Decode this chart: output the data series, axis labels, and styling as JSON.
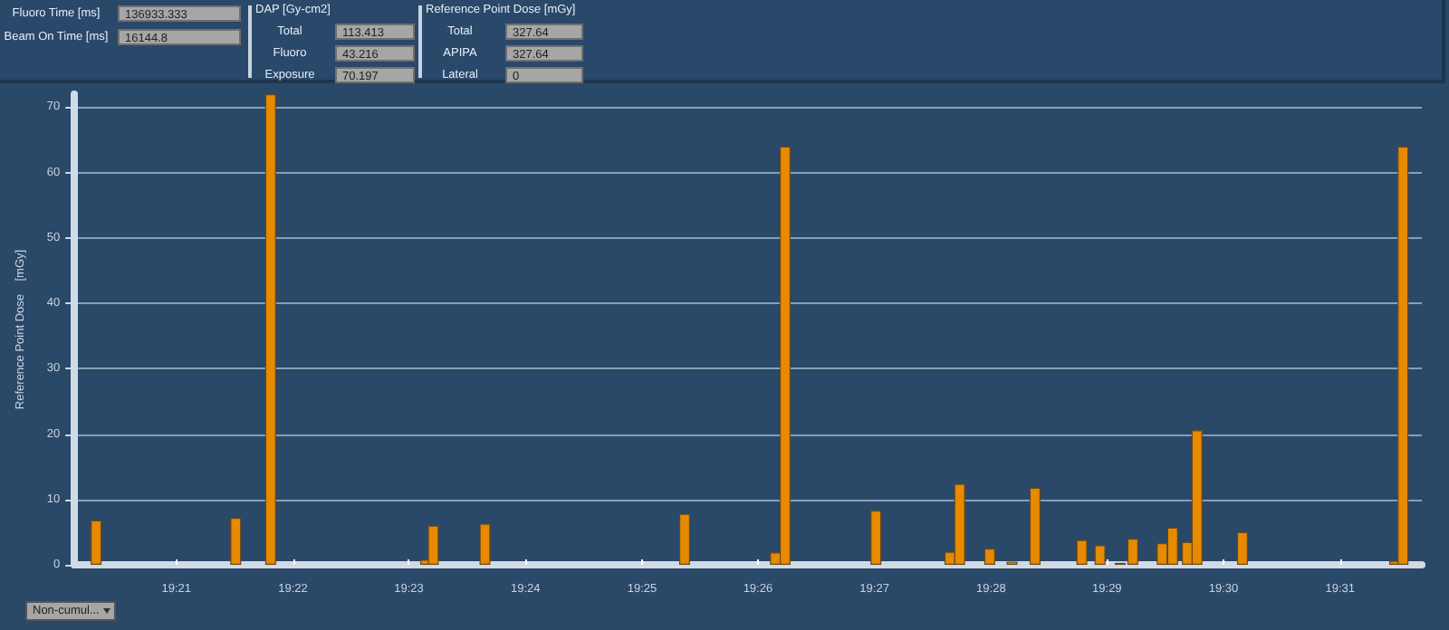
{
  "chart_data": [
    {
      "type": "other",
      "annotations": [
        "Fluoro Time [ms]",
        "136933.333",
        "Beam On Time [ms]",
        "16144.8",
        "DAP [Gy-cm2]",
        "Total",
        "113.413",
        "Fluoro",
        "43.216",
        "Exposure",
        "70.197",
        "Reference Point Dose [mGy]",
        "Total",
        "327.64",
        "APIPA",
        "327.64",
        "Lateral",
        "0"
      ]
    },
    {
      "type": "bar",
      "ylabel": "Reference Point Dose    [mGy]",
      "color": "#e88a00",
      "x": [
        19.3385,
        19.3585,
        19.3635,
        19.3857,
        19.3868,
        19.3942,
        19.4228,
        19.4358,
        19.4372,
        19.4502,
        19.4608,
        19.4622,
        19.4665,
        19.4697,
        19.473,
        19.4797,
        19.4823,
        19.4852,
        19.487,
        19.4912,
        19.4927,
        19.4948,
        19.4962,
        19.5027,
        19.5245,
        19.5257
      ],
      "values": [
        6.8,
        7.2,
        72,
        0.8,
        6,
        6.3,
        7.8,
        1.9,
        64,
        8.3,
        2,
        12.4,
        2.5,
        0.5,
        11.8,
        3.8,
        3,
        0.3,
        4,
        3.3,
        5.7,
        3.5,
        20.6,
        5,
        0.6,
        64
      ],
      "xlim": [
        19.3354,
        19.5284
      ],
      "xticks": [
        {
          "value": 19.35,
          "label": "19:21"
        },
        {
          "value": 19.3667,
          "label": "19:22"
        },
        {
          "value": 19.3833,
          "label": "19:23"
        },
        {
          "value": 19.4,
          "label": "19:24"
        },
        {
          "value": 19.4167,
          "label": "19:25"
        },
        {
          "value": 19.4333,
          "label": "19:26"
        },
        {
          "value": 19.45,
          "label": "19:27"
        },
        {
          "value": 19.4667,
          "label": "19:28"
        },
        {
          "value": 19.4833,
          "label": "19:29"
        },
        {
          "value": 19.5,
          "label": "19:30"
        },
        {
          "value": 19.5167,
          "label": "19:31"
        }
      ],
      "ylim": [
        0,
        72
      ],
      "yticks": [
        0,
        10,
        20,
        30,
        40,
        50,
        60,
        70
      ],
      "grid": "y",
      "annotations": [
        "Non-cumul..."
      ]
    }
  ]
}
